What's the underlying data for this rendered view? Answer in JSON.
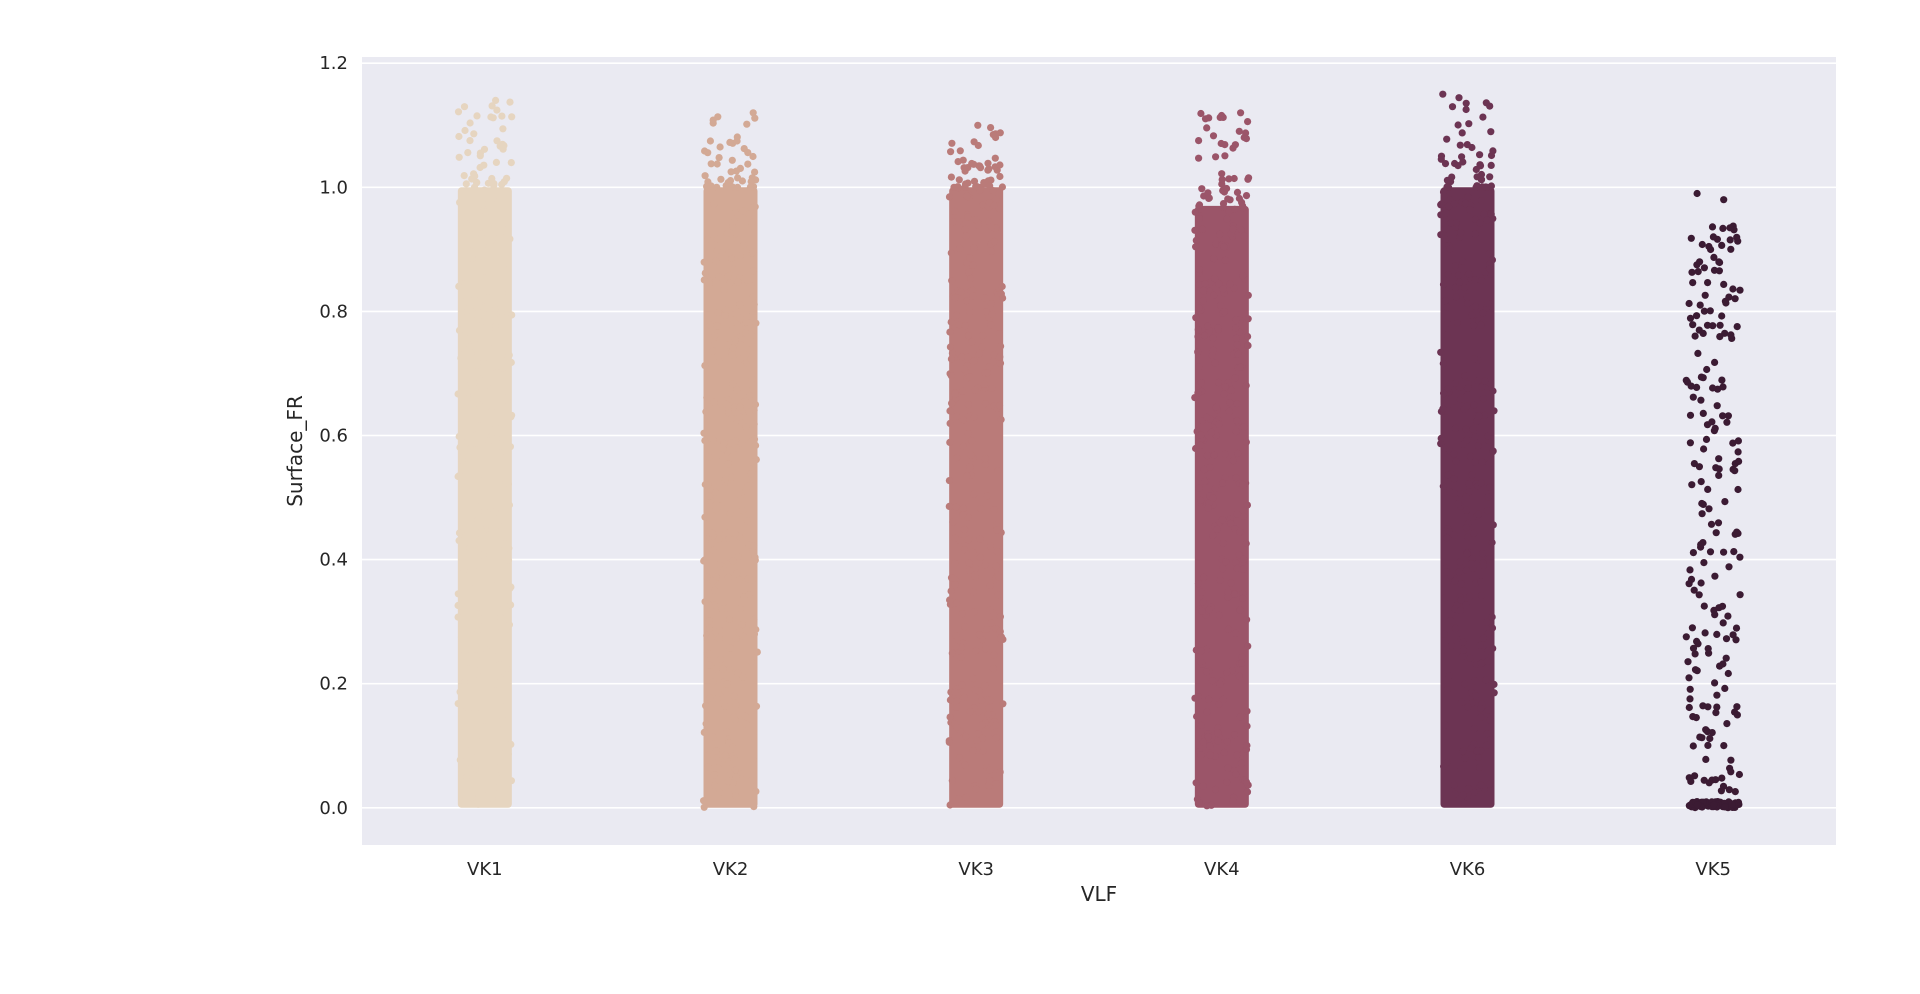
{
  "chart_data": {
    "type": "scatter",
    "subtype": "strip",
    "title": "",
    "xlabel": "VLF",
    "ylabel": "Surface_FR",
    "ylim": [
      -0.06,
      1.21
    ],
    "yticks": [
      0.0,
      0.2,
      0.4,
      0.6,
      0.8,
      1.0,
      1.2
    ],
    "grid": true,
    "background_color": "#eaeaf2",
    "grid_color": "#ffffff",
    "categories": [
      "VK1",
      "VK2",
      "VK3",
      "VK4",
      "VK6",
      "VK5"
    ],
    "series": [
      {
        "category": "VK1",
        "color": "#e6d5c0",
        "density": "dense",
        "min": 0.0,
        "max": 1.14,
        "dense_max": 1.0
      },
      {
        "category": "VK2",
        "color": "#d3a995",
        "density": "dense",
        "min": 0.0,
        "max": 1.12,
        "dense_max": 1.0
      },
      {
        "category": "VK3",
        "color": "#ba7b79",
        "density": "dense",
        "min": 0.0,
        "max": 1.1,
        "dense_max": 1.0
      },
      {
        "category": "VK4",
        "color": "#9b5569",
        "density": "dense",
        "min": 0.0,
        "max": 1.12,
        "dense_max": 0.97
      },
      {
        "category": "VK6",
        "color": "#6c3453",
        "density": "dense",
        "min": 0.0,
        "max": 1.15,
        "dense_max": 1.0
      },
      {
        "category": "VK5",
        "color": "#3b1b33",
        "density": "sparse",
        "min": 0.0,
        "max": 0.99,
        "dense_max": 0.01
      }
    ]
  }
}
